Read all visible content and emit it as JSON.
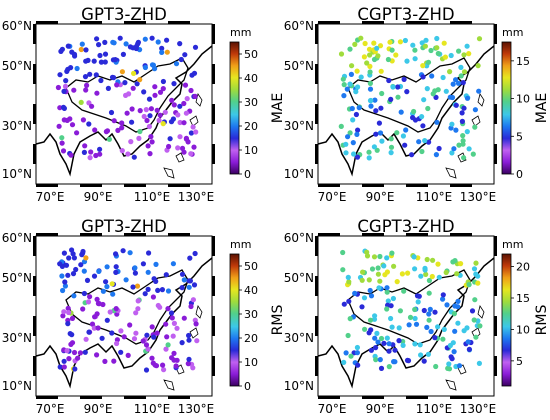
{
  "figure": {
    "panels": [
      {
        "title": "GPT3-ZHD",
        "metric": "MAE",
        "unit": "mm",
        "cb_ticks": [
          "50",
          "40",
          "30",
          "20",
          "10",
          "0"
        ],
        "cb_range": [
          0,
          55
        ],
        "lat_ticks": [
          "60°N",
          "50°N",
          "30°N",
          "10°N"
        ],
        "lon_ticks": [
          "70°E",
          "90°E",
          "110°E",
          "130°E"
        ]
      },
      {
        "title": "CGPT3-ZHD",
        "metric": "MAE",
        "unit": "mm",
        "cb_ticks": [
          "15",
          "10",
          "5",
          "0"
        ],
        "cb_range": [
          0,
          17.5
        ],
        "lat_ticks": [
          "60°N",
          "50°N",
          "30°N",
          "10°N"
        ],
        "lon_ticks": [
          "70°E",
          "90°E",
          "110°E",
          "130°E"
        ]
      },
      {
        "title": "GPT3-ZHD",
        "metric": "RMS",
        "unit": "mm",
        "cb_ticks": [
          "50",
          "40",
          "30",
          "20",
          "10",
          "0"
        ],
        "cb_range": [
          0,
          55
        ],
        "lat_ticks": [
          "60°N",
          "50°N",
          "30°N",
          "10°N"
        ],
        "lon_ticks": [
          "70°E",
          "90°E",
          "110°E",
          "130°E"
        ]
      },
      {
        "title": "CGPT3-ZHD",
        "metric": "RMS",
        "unit": "mm",
        "cb_ticks": [
          "20",
          "15",
          "10",
          "5"
        ],
        "cb_range": [
          1,
          22
        ],
        "lat_ticks": [
          "60°N",
          "50°N",
          "30°N",
          "10°N"
        ],
        "lon_ticks": [
          "70°E",
          "90°E",
          "110°E",
          "130°E"
        ]
      }
    ],
    "colormap": [
      "#3a0060",
      "#8a1cd8",
      "#c060f0",
      "#2a2ad8",
      "#1e78f0",
      "#3cc8e8",
      "#52d08a",
      "#a0dc3c",
      "#e6e620",
      "#f0a018",
      "#c03a0a",
      "#5a1202"
    ]
  }
}
